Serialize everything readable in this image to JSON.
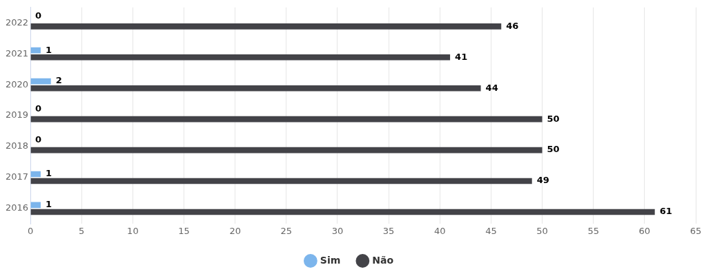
{
  "chart_data": {
    "type": "bar",
    "orientation": "horizontal",
    "categories": [
      "2022",
      "2021",
      "2020",
      "2019",
      "2018",
      "2017",
      "2016"
    ],
    "series": [
      {
        "name": "Sim",
        "color": "#7cb5ec",
        "values": [
          0,
          1,
          2,
          0,
          0,
          1,
          1
        ]
      },
      {
        "name": "Não",
        "color": "#434348",
        "values": [
          46,
          41,
          44,
          50,
          50,
          49,
          61
        ]
      }
    ],
    "xlim": [
      0,
      65
    ],
    "xticks": [
      0,
      5,
      10,
      15,
      20,
      25,
      30,
      35,
      40,
      45,
      50,
      55,
      60,
      65
    ],
    "grid": "x",
    "legend": "bottom",
    "data_labels": true
  }
}
